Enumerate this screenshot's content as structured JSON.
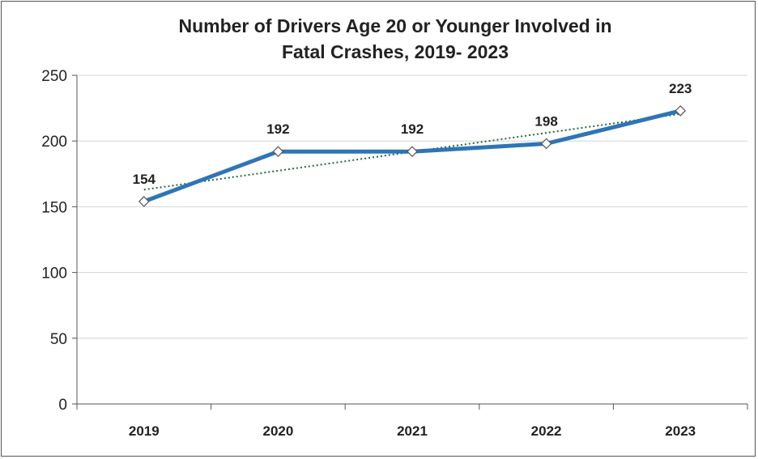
{
  "chart_data": {
    "type": "line",
    "title_lines": [
      "Number of Drivers Age 20 or Younger Involved in",
      "Fatal Crashes, 2019- 2023"
    ],
    "categories": [
      "2019",
      "2020",
      "2021",
      "2022",
      "2023"
    ],
    "series": [
      {
        "values": [
          154,
          192,
          192,
          198,
          223
        ],
        "color": "#2E75B6",
        "marker": "diamond"
      }
    ],
    "trendline": {
      "type": "linear",
      "style": "dotted",
      "color": "#1F6B3A"
    },
    "data_labels": [
      "154",
      "192",
      "192",
      "198",
      "223"
    ],
    "ylim": [
      0,
      250
    ],
    "yticks": [
      0,
      50,
      100,
      150,
      200,
      250
    ],
    "ytick_labels": [
      "0",
      "50",
      "100",
      "150",
      "200",
      "250"
    ],
    "grid": true,
    "legend": "none"
  }
}
